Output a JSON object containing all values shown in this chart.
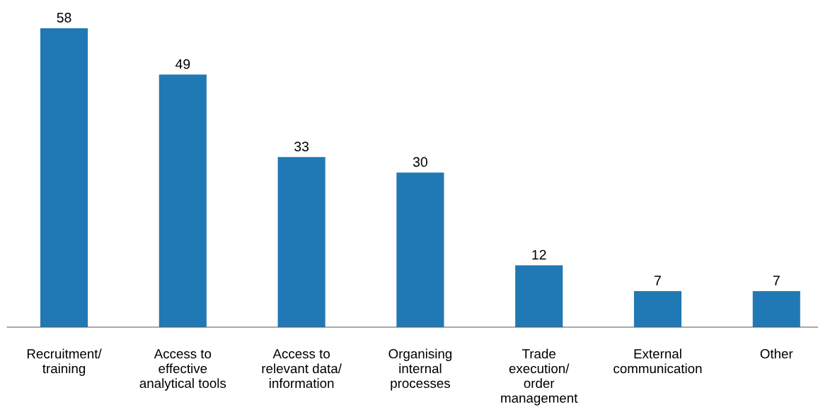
{
  "chart_data": {
    "type": "bar",
    "categories": [
      "Recruitment/\ntraining",
      "Access to\neffective\nanalytical tools",
      "Access to\nrelevant data/\ninformation",
      "Organising\ninternal\nprocesses",
      "Trade\nexecution/\norder\nmanagement",
      "External\ncommunication",
      "Other"
    ],
    "values": [
      58,
      49,
      33,
      30,
      12,
      7,
      7
    ],
    "color": "#2079b4",
    "data_labels": true,
    "tick_labels": "x",
    "grid": false,
    "legend": false
  }
}
